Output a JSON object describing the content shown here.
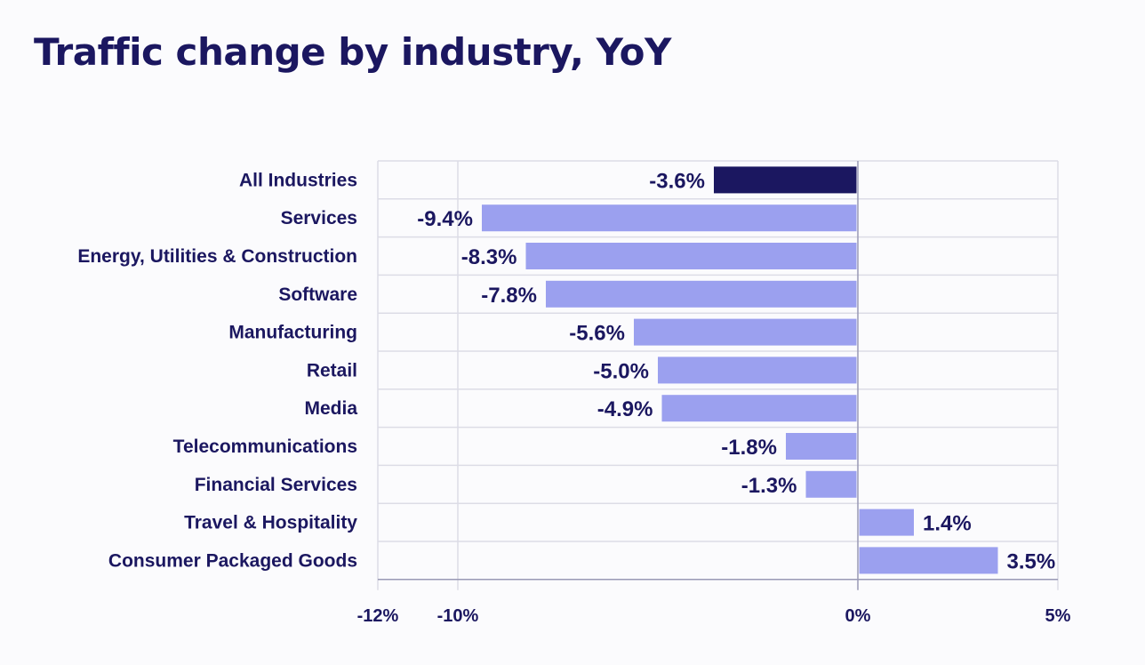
{
  "chart_data": {
    "type": "bar",
    "orientation": "horizontal",
    "title": "Traffic change by industry, YoY",
    "xlabel": "",
    "ylabel": "",
    "categories": [
      "All Industries",
      "Services",
      "Energy, Utilities & Construction",
      "Software",
      "Manufacturing",
      "Retail",
      "Media",
      "Telecommunications",
      "Financial Services",
      "Travel & Hospitality",
      "Consumer Packaged Goods"
    ],
    "values": [
      -3.6,
      -9.4,
      -8.3,
      -7.8,
      -5.6,
      -5.0,
      -4.9,
      -1.8,
      -1.3,
      1.4,
      3.5
    ],
    "value_labels": [
      "-3.6%",
      "-9.4%",
      "-8.3%",
      "-7.8%",
      "-5.6%",
      "-5.0%",
      "-4.9%",
      "-1.8%",
      "-1.3%",
      "1.4%",
      "3.5%"
    ],
    "highlight_category": "All Industries",
    "xlim": [
      -12,
      5
    ],
    "xticks": [
      {
        "value": -12,
        "label": "-12%"
      },
      {
        "value": -10,
        "label": "-10%"
      },
      {
        "value": 0,
        "label": "0%"
      },
      {
        "value": 5,
        "label": "5%"
      }
    ],
    "grid": true,
    "legend": "none",
    "colors": {
      "highlight": "#1b1760",
      "bar": "#9ba0ef",
      "text": "#1b1760",
      "grid": "#dcdce6",
      "axis": "#9a9ab5",
      "background": "#fbfbfd"
    }
  }
}
